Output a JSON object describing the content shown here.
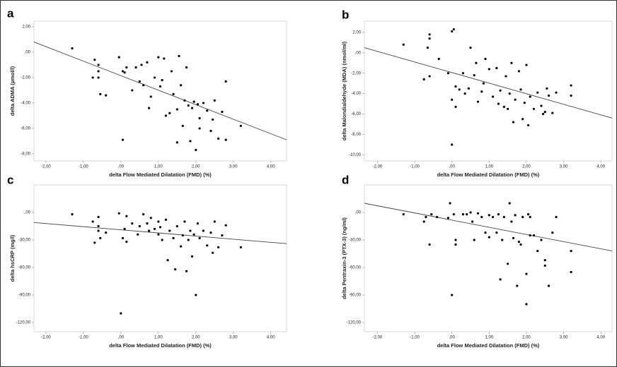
{
  "chart_data": [
    {
      "type": "scatter",
      "panel_label": "a",
      "x_label": "delta Flow Mediated Dilatation (FMD) (%)",
      "y_label": "delta ADMA (µmol/l)",
      "color": "#000000",
      "trend_color": "#444444",
      "xlim": [
        -2.32,
        4.42
      ],
      "ylim": [
        -8.56,
        2.44
      ],
      "xticks": [
        {
          "value": -2,
          "label": "-2,00"
        },
        {
          "value": -1,
          "label": "-1,00"
        },
        {
          "value": 0,
          "label": ",00"
        },
        {
          "value": 1,
          "label": "1,00"
        },
        {
          "value": 2,
          "label": "2,00"
        },
        {
          "value": 3,
          "label": "3,00"
        },
        {
          "value": 4,
          "label": "4,00"
        }
      ],
      "yticks": [
        {
          "value": 2,
          "label": "2,00"
        },
        {
          "value": 0,
          "label": ",00"
        },
        {
          "value": -2,
          "label": "-2,00"
        },
        {
          "value": -4,
          "label": "-4,00"
        },
        {
          "value": -6,
          "label": "-6,00"
        },
        {
          "value": -8,
          "label": "-8,00"
        }
      ],
      "x": [
        -1.3,
        -0.75,
        -0.7,
        -0.6,
        -0.6,
        -0.55,
        -0.6,
        -0.4,
        -0.05,
        0.05,
        0.1,
        0.15,
        0.3,
        0.4,
        0.5,
        0.55,
        0.6,
        0.7,
        0.75,
        0.8,
        0.9,
        1.0,
        1.05,
        1.1,
        1.15,
        1.2,
        1.3,
        1.35,
        1.4,
        1.5,
        1.55,
        1.6,
        1.65,
        1.7,
        1.75,
        1.8,
        1.85,
        1.9,
        1.95,
        2.0,
        2.05,
        2.1,
        2.2,
        2.3,
        2.4,
        2.45,
        2.5,
        2.6,
        2.7,
        2.8,
        3.2,
        0.05,
        1.5,
        2.1,
        2.8
      ],
      "y": [
        0.3,
        -2.0,
        -0.6,
        -1.5,
        -2.0,
        -3.3,
        -1.0,
        -3.4,
        -0.4,
        -1.5,
        -1.6,
        -1.2,
        -3.0,
        -1.2,
        -2.3,
        -1.0,
        -2.6,
        -0.8,
        -4.4,
        -3.5,
        -2.0,
        -0.4,
        -2.7,
        -2.2,
        -0.5,
        -5.0,
        -4.8,
        -1.5,
        -3.3,
        -4.5,
        -0.3,
        -2.6,
        -5.8,
        -3.8,
        -1.2,
        -4.2,
        -7.0,
        -4.4,
        -3.9,
        -7.7,
        -4.1,
        -5.2,
        -4.0,
        -4.6,
        -6.2,
        -5.3,
        -3.8,
        -6.8,
        -4.7,
        -2.3,
        -5.8,
        -6.9,
        -7.1,
        -6.0,
        -6.9
      ],
      "trend_line": {
        "x": [
          -2.32,
          4.42
        ],
        "y": [
          0.8,
          -6.9
        ]
      }
    },
    {
      "type": "scatter",
      "panel_label": "b",
      "x_label": "delta Flow Mediated Dilatation (FMD) (%)",
      "y_label": "delta Malondialdehyde (MDA) (nmol/ml)",
      "color": "#000000",
      "trend_color": "#444444",
      "xlim": [
        -2.35,
        4.3
      ],
      "ylim": [
        -10.6,
        3.1
      ],
      "xticks": [
        {
          "value": -2,
          "label": "-2,00"
        },
        {
          "value": -1,
          "label": "-1,00"
        },
        {
          "value": 0,
          "label": ",00"
        },
        {
          "value": 1,
          "label": "1,00"
        },
        {
          "value": 2,
          "label": "2,00"
        },
        {
          "value": 3,
          "label": "3,00"
        },
        {
          "value": 4,
          "label": "4,00"
        }
      ],
      "yticks": [
        {
          "value": 2,
          "label": "2,00"
        },
        {
          "value": 0,
          "label": ",00"
        },
        {
          "value": -2,
          "label": "-2,00"
        },
        {
          "value": -4,
          "label": "-4,00"
        },
        {
          "value": -6,
          "label": "-6,00"
        },
        {
          "value": -8,
          "label": "-8,00"
        },
        {
          "value": -10,
          "label": "-10,00"
        }
      ],
      "x": [
        -1.3,
        -0.75,
        -0.65,
        -0.6,
        -0.6,
        -0.6,
        -0.35,
        -0.1,
        0,
        0.05,
        0,
        0.1,
        0.1,
        0,
        0.2,
        0.3,
        0.35,
        0.45,
        0.5,
        0.6,
        0.65,
        0.7,
        0.8,
        0.85,
        0.9,
        1.0,
        1.1,
        1.2,
        1.25,
        1.3,
        1.4,
        1.45,
        1.5,
        1.55,
        1.6,
        1.65,
        1.7,
        1.8,
        1.85,
        1.9,
        1.95,
        2.0,
        2.05,
        2.1,
        2.2,
        2.3,
        2.4,
        2.5,
        2.55,
        2.6,
        2.7,
        2.8,
        3.2,
        3.2,
        2.45
      ],
      "y": [
        0.8,
        -2.6,
        0.5,
        1.8,
        1.4,
        -2.3,
        -0.6,
        -2.0,
        2.1,
        2.3,
        -4.6,
        -3.3,
        -5.3,
        -9.0,
        -3.6,
        -2.0,
        -4.0,
        -3.5,
        0.5,
        -2.2,
        -1.0,
        -4.8,
        -3.8,
        -3.0,
        -0.6,
        -1.6,
        -4.3,
        -1.5,
        -5.0,
        -3.7,
        -5.3,
        -2.3,
        -5.5,
        -4.0,
        -1.0,
        -6.8,
        -4.6,
        -1.8,
        -3.6,
        -6.5,
        -4.9,
        -1.2,
        -7.1,
        -4.3,
        -5.5,
        -3.9,
        -5.2,
        -5.8,
        -3.5,
        -4.2,
        -5.9,
        -3.9,
        -3.2,
        -4.2,
        -6.0
      ],
      "trend_line": {
        "x": [
          -2.35,
          4.3
        ],
        "y": [
          0.5,
          -6.4
        ]
      }
    },
    {
      "type": "scatter",
      "panel_label": "c",
      "x_label": "delta Flow Mediated Dilatation (FMD) (%)",
      "y_label": "delta hsCRP (mg/l)",
      "color": "#000000",
      "trend_color": "#444444",
      "xlim": [
        -2.32,
        4.42
      ],
      "ylim": [
        -130,
        30
      ],
      "xticks": [
        {
          "value": -2,
          "label": "-2,00"
        },
        {
          "value": -1,
          "label": "-1,00"
        },
        {
          "value": 0,
          "label": ",00"
        },
        {
          "value": 1,
          "label": "1,00"
        },
        {
          "value": 2,
          "label": "2,00"
        },
        {
          "value": 3,
          "label": "3,00"
        },
        {
          "value": 4,
          "label": "4,00"
        }
      ],
      "yticks": [
        {
          "value": 0,
          "label": ",00"
        },
        {
          "value": -30,
          "label": "-30,00"
        },
        {
          "value": -60,
          "label": "-60,00"
        },
        {
          "value": -90,
          "label": "-90,00"
        },
        {
          "value": -120,
          "label": "-120,00"
        }
      ],
      "x": [
        -1.3,
        -0.75,
        -0.7,
        -0.6,
        -0.6,
        -0.55,
        -0.6,
        -0.4,
        -0.05,
        0.05,
        0.1,
        0.15,
        0.3,
        0.45,
        0.5,
        0.6,
        0.7,
        0.75,
        0.8,
        0.9,
        1.0,
        1.05,
        1.1,
        1.2,
        1.25,
        1.3,
        1.4,
        1.45,
        1.5,
        1.6,
        1.65,
        1.7,
        1.75,
        1.8,
        1.85,
        1.9,
        1.95,
        2.0,
        2.05,
        2.1,
        2.2,
        2.3,
        2.4,
        2.45,
        2.5,
        2.6,
        2.7,
        2.8,
        3.2,
        0,
        0.15,
        1.0
      ],
      "y": [
        -2,
        -10,
        -33,
        -15,
        -20,
        -28,
        -5,
        -22,
        -1,
        -28,
        -18,
        -4,
        -12,
        -24,
        -15,
        -2,
        -12,
        -20,
        -6,
        -18,
        -10,
        -16,
        -30,
        -8,
        -52,
        -20,
        -28,
        -62,
        -15,
        -37,
        -25,
        -10,
        -64,
        -30,
        -20,
        -48,
        -24,
        -90,
        -12,
        -28,
        -20,
        -36,
        -22,
        -44,
        -10,
        -38,
        -25,
        -14,
        -38,
        -110,
        -32,
        -24
      ],
      "trend_line": {
        "x": [
          -2.32,
          4.42
        ],
        "y": [
          -11,
          -34
        ]
      }
    },
    {
      "type": "scatter",
      "panel_label": "d",
      "x_label": "delta Flow Mediated Dilatation (FMD) (%)",
      "y_label": "delta Pentraxin-3 (PTX-3) (ng/ml)",
      "color": "#000000",
      "trend_color": "#444444",
      "xlim": [
        -2.35,
        4.3
      ],
      "ylim": [
        -130,
        30
      ],
      "xticks": [
        {
          "value": -2,
          "label": "-2,00"
        },
        {
          "value": -1,
          "label": "-1,00"
        },
        {
          "value": 0,
          "label": ",00"
        },
        {
          "value": 1,
          "label": "1,00"
        },
        {
          "value": 2,
          "label": "2,00"
        },
        {
          "value": 3,
          "label": "3,00"
        },
        {
          "value": 4,
          "label": "4,00"
        }
      ],
      "yticks": [
        {
          "value": 0,
          "label": ",00"
        },
        {
          "value": -30,
          "label": "-30,00"
        },
        {
          "value": -60,
          "label": "-60,00"
        },
        {
          "value": -90,
          "label": "-90,00"
        },
        {
          "value": -120,
          "label": "-120,00"
        }
      ],
      "x": [
        -1.3,
        -0.75,
        -0.7,
        -0.6,
        -0.55,
        -0.4,
        -0.1,
        -0.05,
        0.05,
        0.1,
        0.1,
        0,
        0.3,
        0.4,
        0.5,
        0.55,
        0.6,
        0.7,
        0.8,
        0.9,
        1.0,
        1.1,
        1.2,
        1.25,
        1.3,
        1.35,
        1.4,
        1.5,
        1.55,
        1.6,
        1.65,
        1.7,
        1.75,
        1.8,
        1.85,
        1.9,
        2.0,
        2.0,
        2.05,
        2.1,
        2.2,
        2.3,
        2.4,
        2.5,
        2.5,
        2.6,
        2.7,
        2.8,
        3.2,
        3.2,
        1.0,
        2.1
      ],
      "y": [
        -2,
        -10,
        -5,
        -35,
        -2,
        -5,
        -6,
        10,
        -2,
        -30,
        -35,
        -90,
        -2,
        -2,
        0,
        -10,
        -30,
        -1,
        -5,
        -22,
        -3,
        -5,
        -22,
        -2,
        -73,
        -30,
        -5,
        -56,
        10,
        -10,
        -28,
        -3,
        -80,
        -32,
        -35,
        -5,
        -100,
        -67,
        -2,
        -25,
        -25,
        -42,
        -30,
        -58,
        -52,
        -80,
        -22,
        -5,
        -42,
        -65,
        -27,
        -5
      ],
      "trend_line": {
        "x": [
          -2.35,
          4.3
        ],
        "y": [
          10,
          -42
        ]
      }
    }
  ]
}
